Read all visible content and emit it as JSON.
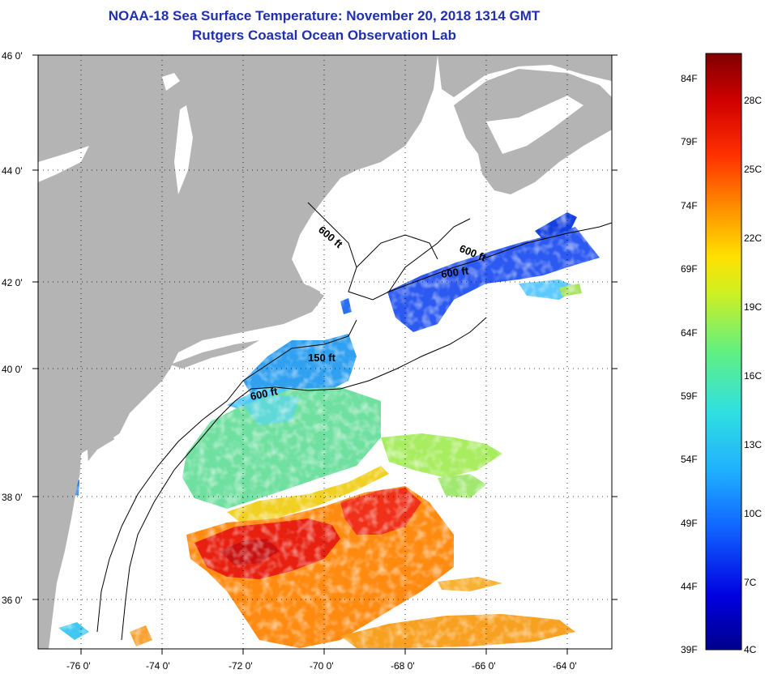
{
  "header": {
    "title": "NOAA-18 Sea Surface Temperature:  November 20, 2018 1314 GMT",
    "subtitle": "Rutgers Coastal Ocean Observation Lab"
  },
  "map": {
    "lat_labels": [
      "46 0'",
      "44 0'",
      "42 0'",
      "40 0'",
      "38 0'",
      "36 0'"
    ],
    "lon_labels": [
      "-76 0'",
      "-74 0'",
      "-72 0'",
      "-70 0'",
      "-68 0'",
      "-66 0'",
      "-64 0'"
    ],
    "contour_labels": [
      "600 ft",
      "600 ft",
      "600 ft",
      "150 ft",
      "600 ft"
    ],
    "colors": {
      "land": "#b4b4b4",
      "ocean_nodata": "#ffffff"
    }
  },
  "colorbar": {
    "fahrenheit_labels": [
      "84F",
      "79F",
      "74F",
      "69F",
      "64F",
      "59F",
      "54F",
      "49F",
      "44F",
      "39F"
    ],
    "celsius_labels": [
      "28C",
      "25C",
      "22C",
      "19C",
      "16C",
      "13C",
      "10C",
      "7C",
      "4C"
    ],
    "colors": [
      "#00008c",
      "#0000e0",
      "#1060ff",
      "#20b0ff",
      "#30e0e0",
      "#60f080",
      "#d0f020",
      "#ffe000",
      "#ff9000",
      "#ff3000",
      "#d00000",
      "#800000"
    ]
  }
}
